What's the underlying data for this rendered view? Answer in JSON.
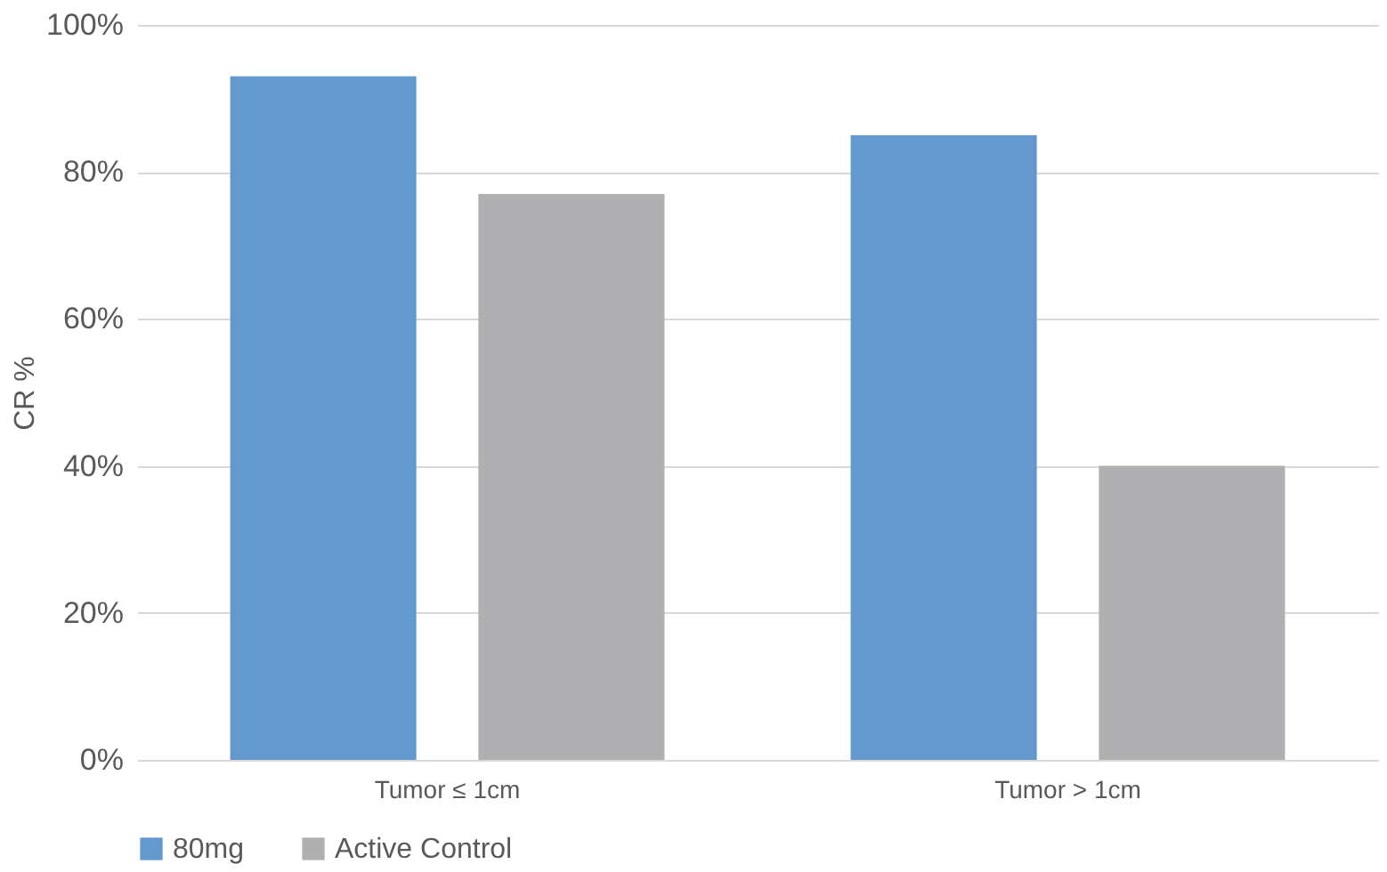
{
  "chart_data": {
    "type": "bar",
    "ylabel": "CR %",
    "categories": [
      "Tumor ≤ 1cm",
      "Tumor > 1cm"
    ],
    "series": [
      {
        "name": "80mg",
        "color": "#6399cc",
        "values": [
          93,
          85
        ]
      },
      {
        "name": "Active Control",
        "color": "#b0b0b3",
        "values": [
          77,
          40
        ]
      }
    ],
    "ylim": [
      0,
      100
    ],
    "yticks": [
      {
        "value": 0,
        "label": "0%"
      },
      {
        "value": 20,
        "label": "20%"
      },
      {
        "value": 40,
        "label": "40%"
      },
      {
        "value": 60,
        "label": "60%"
      },
      {
        "value": 80,
        "label": "80%"
      },
      {
        "value": 100,
        "label": "100%"
      }
    ],
    "grid": "y",
    "legend": "bottom"
  }
}
